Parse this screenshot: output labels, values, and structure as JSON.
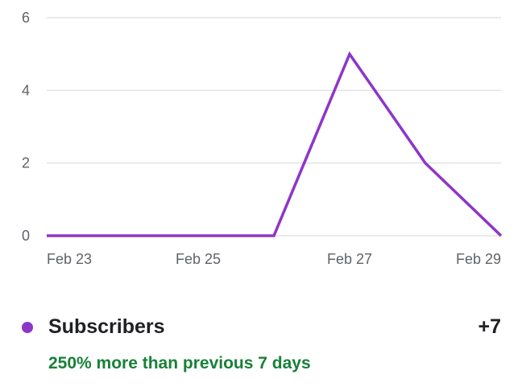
{
  "chart_data": {
    "type": "line",
    "title": "",
    "xlabel": "",
    "ylabel": "",
    "x": [
      "Feb 23",
      "Feb 24",
      "Feb 25",
      "Feb 26",
      "Feb 27",
      "Feb 28",
      "Feb 29"
    ],
    "x_tick_labels": [
      "Feb 23",
      "Feb 25",
      "Feb 27",
      "Feb 29"
    ],
    "y_ticks": [
      0,
      2,
      4,
      6
    ],
    "ylim": [
      0,
      6
    ],
    "grid": true,
    "series": [
      {
        "name": "Subscribers",
        "values": [
          0,
          0,
          0,
          0,
          5,
          2,
          0
        ],
        "color": "#8e35c9"
      }
    ]
  },
  "legend": {
    "label": "Subscribers",
    "total": "+7",
    "dot_color": "#8e35c9"
  },
  "comparison": {
    "text": "250% more than previous 7 days",
    "color": "#188038"
  }
}
